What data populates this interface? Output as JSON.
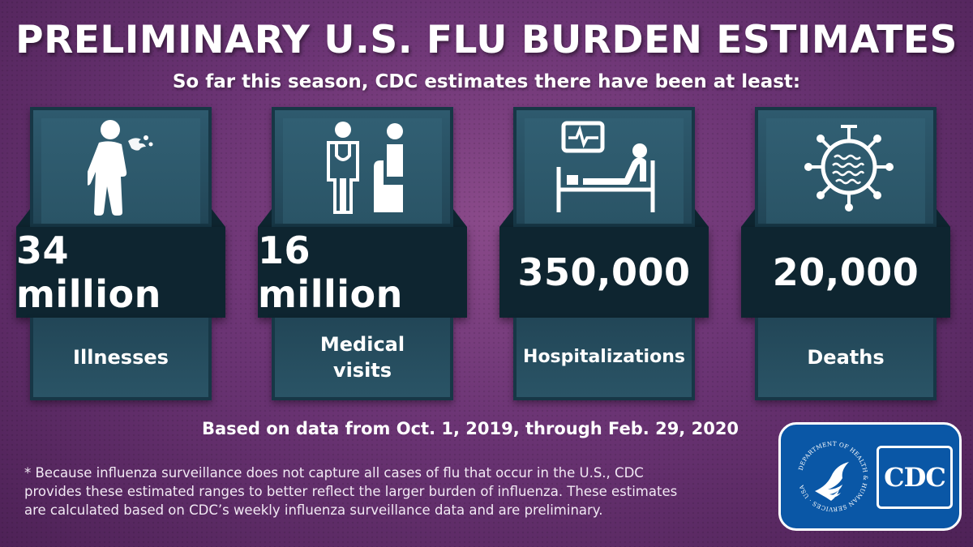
{
  "title": "PRELIMINARY U.S. FLU BURDEN ESTIMATES",
  "subtitle": "So far this season, CDC estimates there have been at least:",
  "cards": [
    {
      "number": "34 million",
      "label": "Illnesses",
      "icon": "sick-person-icon"
    },
    {
      "number": "16 million",
      "label_line1": "Medical",
      "label_line2": "visits",
      "icon": "doctor-patient-icon"
    },
    {
      "number": "350,000",
      "label": "Hospitalizations",
      "icon": "hospital-bed-icon"
    },
    {
      "number": "20,000",
      "label": "Deaths",
      "icon": "virus-icon"
    }
  ],
  "based_on": "Based on data from Oct. 1, 2019, through Feb. 29, 2020",
  "footnote_lines": [
    "* Because influenza surveillance does not capture all cases of flu that occur in the U.S., CDC",
    "provides these estimated ranges to better reflect the larger burden of influenza. These estimates",
    "are calculated based on CDC’s weekly influenza surveillance data and are preliminary."
  ],
  "logo": {
    "seal_text": "DEPARTMENT OF HEALTH & HUMAN SERVICES · USA",
    "cdc": "CDC"
  },
  "colors": {
    "background": "#6b3474",
    "card": "#2a5466",
    "band": "#0e2530",
    "logo_blue": "#0a57a6"
  }
}
